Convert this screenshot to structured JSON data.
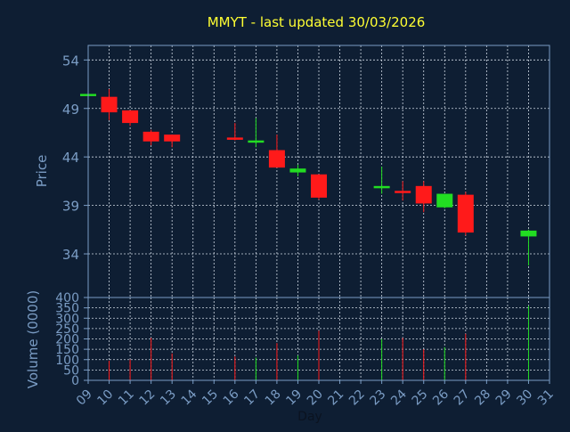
{
  "chart_data": {
    "type": "candlestick",
    "title": "MMYT - last updated 30/03/2026",
    "xlabel": "Day",
    "price_ylabel": "Price",
    "volume_ylabel": "Volume (0000)",
    "x_ticks": [
      "09",
      "10",
      "11",
      "12",
      "13",
      "14",
      "15",
      "16",
      "17",
      "18",
      "19",
      "20",
      "21",
      "22",
      "23",
      "24",
      "25",
      "26",
      "27",
      "28",
      "29",
      "30",
      "31"
    ],
    "x_range": [
      9,
      31
    ],
    "price_ylim": [
      29.5,
      55.5
    ],
    "price_yticks": [
      34,
      39,
      44,
      49,
      54
    ],
    "volume_ylim": [
      0,
      400
    ],
    "volume_yticks": [
      0,
      50,
      100,
      150,
      200,
      250,
      300,
      350,
      400
    ],
    "grid": true,
    "colors": {
      "background": "#0e1e33",
      "axes": "#7a9cc4",
      "grid": "#cfd8e3",
      "title": "#ffff33",
      "label": "#7a9cc4",
      "up": "#22dd22",
      "down": "#ff1a1a"
    },
    "candles": [
      {
        "day": 9,
        "open": 50.5,
        "high": 50.5,
        "low": 50.5,
        "close": 50.5,
        "volume": 0
      },
      {
        "day": 10,
        "open": 50.2,
        "high": 51.0,
        "low": 47.8,
        "close": 48.6,
        "volume": 95
      },
      {
        "day": 11,
        "open": 48.8,
        "high": 48.8,
        "low": 47.2,
        "close": 47.5,
        "volume": 100
      },
      {
        "day": 12,
        "open": 46.6,
        "high": 46.8,
        "low": 45.2,
        "close": 45.6,
        "volume": 205
      },
      {
        "day": 13,
        "open": 46.3,
        "high": 46.3,
        "low": 45.0,
        "close": 45.6,
        "volume": 130
      },
      {
        "day": 16,
        "open": 46.0,
        "high": 47.5,
        "low": 45.7,
        "close": 45.8,
        "volume": 115
      },
      {
        "day": 17,
        "open": 45.6,
        "high": 48.0,
        "low": 45.0,
        "close": 45.7,
        "volume": 110
      },
      {
        "day": 18,
        "open": 44.7,
        "high": 46.3,
        "low": 42.9,
        "close": 42.9,
        "volume": 180
      },
      {
        "day": 19,
        "open": 42.4,
        "high": 43.2,
        "low": 42.0,
        "close": 42.8,
        "volume": 120
      },
      {
        "day": 20,
        "open": 42.2,
        "high": 42.2,
        "low": 39.6,
        "close": 39.8,
        "volume": 240
      },
      {
        "day": 23,
        "open": 40.8,
        "high": 43.0,
        "low": 40.2,
        "close": 41.0,
        "volume": 200
      },
      {
        "day": 24,
        "open": 40.5,
        "high": 41.5,
        "low": 39.5,
        "close": 40.3,
        "volume": 205
      },
      {
        "day": 25,
        "open": 41.0,
        "high": 41.5,
        "low": 38.3,
        "close": 39.2,
        "volume": 150
      },
      {
        "day": 26,
        "open": 38.8,
        "high": 40.2,
        "low": 38.7,
        "close": 40.2,
        "volume": 160
      },
      {
        "day": 27,
        "open": 40.1,
        "high": 40.4,
        "low": 35.9,
        "close": 36.2,
        "volume": 225
      },
      {
        "day": 30,
        "open": 35.8,
        "high": 36.5,
        "low": 32.8,
        "close": 36.4,
        "volume": 360
      }
    ]
  }
}
